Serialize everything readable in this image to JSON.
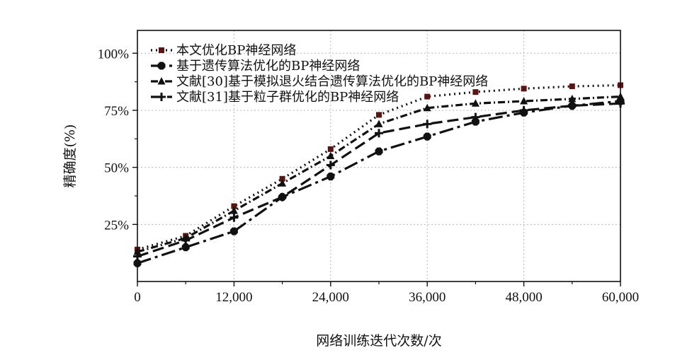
{
  "chart_data": {
    "type": "line",
    "title": "",
    "xlabel": "网络训练迭代次数/次",
    "ylabel": "精确度(%)",
    "xlim": [
      0,
      60000
    ],
    "ylim": [
      0,
      1.1
    ],
    "grid": true,
    "legend_position": "top-left",
    "x_ticks": [
      {
        "value": 0,
        "label": "0"
      },
      {
        "value": 12000,
        "label": "12,000"
      },
      {
        "value": 24000,
        "label": "24,000"
      },
      {
        "value": 36000,
        "label": "36,000"
      },
      {
        "value": 48000,
        "label": "48,000"
      },
      {
        "value": 60000,
        "label": "60,000"
      }
    ],
    "y_ticks": [
      {
        "value": 0.25,
        "label": "25%"
      },
      {
        "value": 0.5,
        "label": "50%"
      },
      {
        "value": 0.75,
        "label": "75%"
      },
      {
        "value": 1.0,
        "label": "100%"
      }
    ],
    "series": [
      {
        "name": "本文优化BP神经网络",
        "marker": "square",
        "marker_color": "#5a1414",
        "dash": "2,5",
        "x": [
          0,
          6000,
          12000,
          18000,
          24000,
          30000,
          36000,
          42000,
          48000,
          54000,
          60000
        ],
        "y": [
          0.14,
          0.2,
          0.33,
          0.45,
          0.58,
          0.73,
          0.81,
          0.83,
          0.845,
          0.855,
          0.86
        ]
      },
      {
        "name": "基于遗传算法优化的BP神经网络",
        "marker": "octagon",
        "marker_color": "#111111",
        "dash": "20,6,4,6",
        "x": [
          0,
          6000,
          12000,
          18000,
          24000,
          30000,
          36000,
          42000,
          48000,
          54000,
          60000
        ],
        "y": [
          0.08,
          0.15,
          0.22,
          0.37,
          0.46,
          0.57,
          0.635,
          0.7,
          0.74,
          0.77,
          0.79
        ]
      },
      {
        "name": "文献[30]基于模拟退火结合遗传算法优化的BP神经网络",
        "marker": "triangle",
        "marker_color": "#111111",
        "dash": "10,4,2,4",
        "x": [
          0,
          6000,
          12000,
          18000,
          24000,
          30000,
          36000,
          42000,
          48000,
          54000,
          60000
        ],
        "y": [
          0.13,
          0.19,
          0.31,
          0.43,
          0.55,
          0.69,
          0.76,
          0.78,
          0.79,
          0.8,
          0.81
        ]
      },
      {
        "name": "文献[31]基于粒子群优化的BP神经网络",
        "marker": "cross",
        "marker_color": "#111111",
        "dash": "16,7",
        "x": [
          0,
          6000,
          12000,
          18000,
          24000,
          30000,
          36000,
          42000,
          48000,
          54000,
          60000
        ],
        "y": [
          0.11,
          0.18,
          0.28,
          0.37,
          0.51,
          0.65,
          0.69,
          0.72,
          0.75,
          0.77,
          0.78
        ]
      }
    ]
  }
}
